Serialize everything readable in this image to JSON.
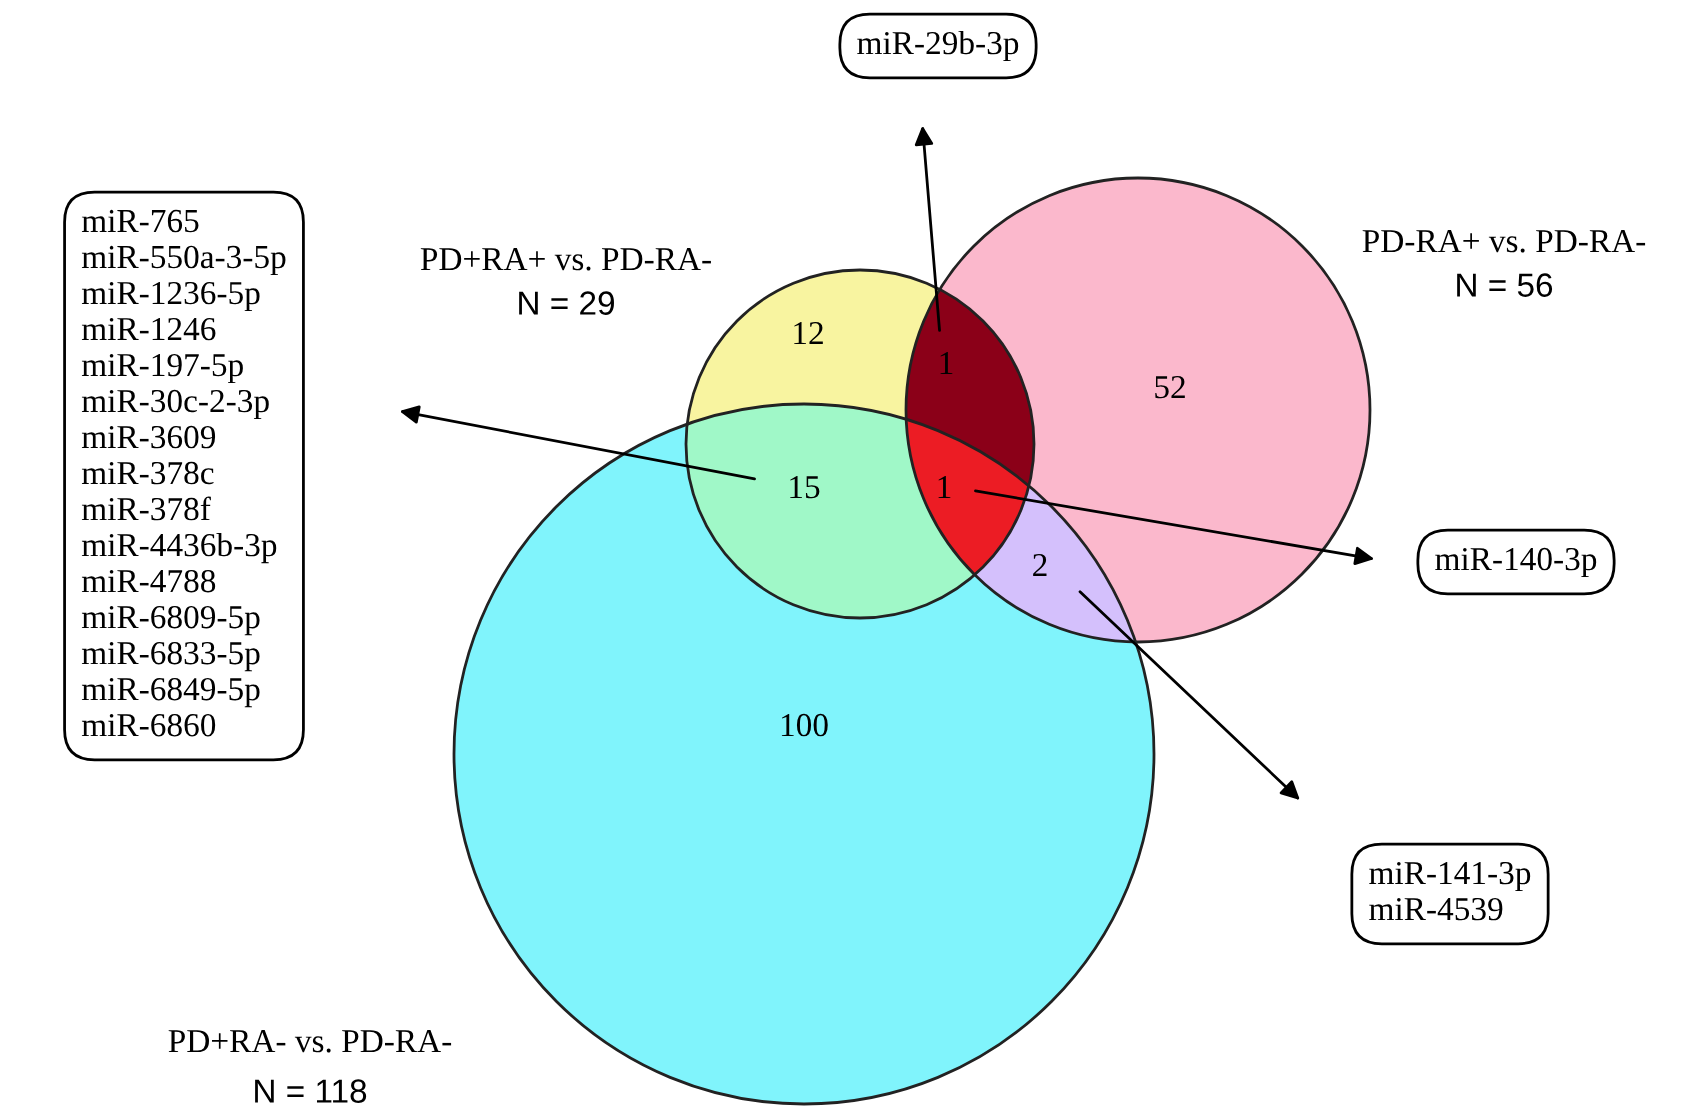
{
  "chart_data": {
    "type": "other",
    "categories": [
      null,
      null,
      null,
      null,
      null,
      null,
      null
    ],
    "values": [
      12,
      1,
      52,
      15,
      1,
      2,
      100
    ],
    "data_labels": true,
    "colors": [
      "#f8f4a0",
      "#8b0018",
      "#fbb8cc",
      "#a0f8c8",
      "#ec1c24",
      "#d4c0fc",
      "#80f4fc"
    ],
    "annotations": [
      "PD+RA+ vs. PD-RA-",
      "N = 29",
      "PD-RA+ vs. PD-RA-",
      "N = 56",
      "PD+RA- vs. PD-RA-",
      "N = 118",
      "miR-765\nmiR-550a-3-5p\nmiR-1236-5p\nmiR-1246\nmiR-197-5p\nmiR-30c-2-3p\nmiR-3609\nmiR-378c\nmiR-378f\nmiR-4436b-3p\nmiR-4788\nmiR-6809-5p\nmiR-6833-5p\nmiR-6849-5p\nmiR-6860",
      "miR-29b-3p",
      "miR-140-3p",
      "miR-141-3p\nmiR-4539"
    ]
  }
}
